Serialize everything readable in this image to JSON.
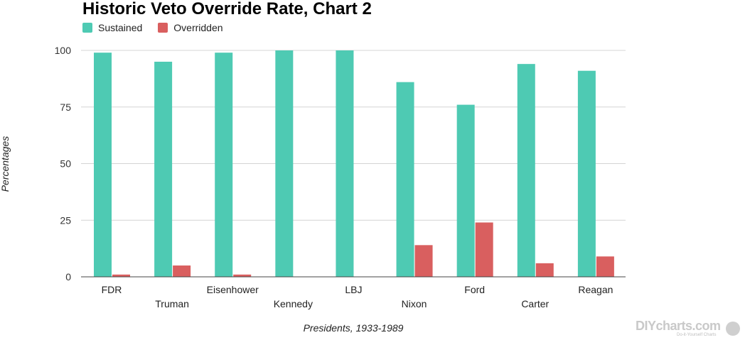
{
  "chart_data": {
    "type": "bar",
    "title": "Historic Veto Override Rate, Chart 2",
    "xlabel": "Presidents, 1933-1989",
    "ylabel": "Percentages",
    "categories": [
      "FDR",
      "Truman",
      "Eisenhower",
      "Kennedy",
      "LBJ",
      "Nixon",
      "Ford",
      "Carter",
      "Reagan"
    ],
    "series": [
      {
        "name": "Sustained",
        "color": "#4ecab3",
        "values": [
          99,
          95,
          99,
          100,
          100,
          86,
          76,
          94,
          91
        ]
      },
      {
        "name": "Overridden",
        "color": "#d95f5f",
        "values": [
          1,
          5,
          1,
          0,
          0,
          14,
          24,
          6,
          9
        ]
      }
    ],
    "ylim": [
      0,
      100
    ],
    "yticks": [
      0,
      25,
      50,
      75,
      100
    ],
    "grid": true,
    "legend_position": "top-left"
  },
  "watermark": {
    "text": "DIYcharts.com",
    "subtext": "Do-it-Yourself Charts"
  }
}
